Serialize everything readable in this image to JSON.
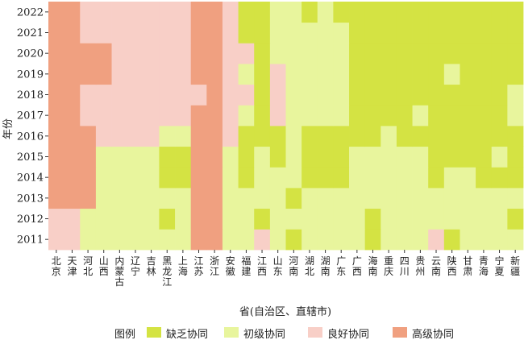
{
  "chart_data": {
    "type": "heatmap",
    "xlabel": "省(自治区、直辖市)",
    "ylabel": "年份",
    "x_categories": [
      "北京",
      "天津",
      "河北",
      "山西",
      "内蒙古",
      "辽宁",
      "吉林",
      "黑龙江",
      "上海",
      "江苏",
      "浙江",
      "安徽",
      "福建",
      "江西",
      "山东",
      "河南",
      "湖北",
      "湖南",
      "广东",
      "广西",
      "海南",
      "重庆",
      "四川",
      "贵州",
      "云南",
      "陕西",
      "甘肃",
      "青海",
      "宁夏",
      "新疆"
    ],
    "y_categories": [
      "2011",
      "2012",
      "2013",
      "2014",
      "2015",
      "2016",
      "2017",
      "2018",
      "2019",
      "2020",
      "2021",
      "2022"
    ],
    "legend": {
      "title": "图例",
      "items": [
        {
          "key": "1",
          "label": "缺乏协同",
          "color": "#d4e343"
        },
        {
          "key": "2",
          "label": "初级协同",
          "color": "#e8f59d"
        },
        {
          "key": "3",
          "label": "良好协同",
          "color": "#f8cfc7"
        },
        {
          "key": "4",
          "label": "高级协同",
          "color": "#f0a080"
        }
      ]
    },
    "values": [
      "332222222442232122221222312222",
      "332222212442212222221222222221",
      "444222222442222122222222222222",
      "444222211442122211122222122111",
      "444222211442121211122222111121",
      "444333322443111211111211111111",
      "443333333443213222211112111112",
      "443333333343313222211111111112",
      "444433333443213222211111121111",
      "444433333443312222211111111111",
      "443333333443112222211111111111",
      "443333333443112212111111111111"
    ]
  }
}
